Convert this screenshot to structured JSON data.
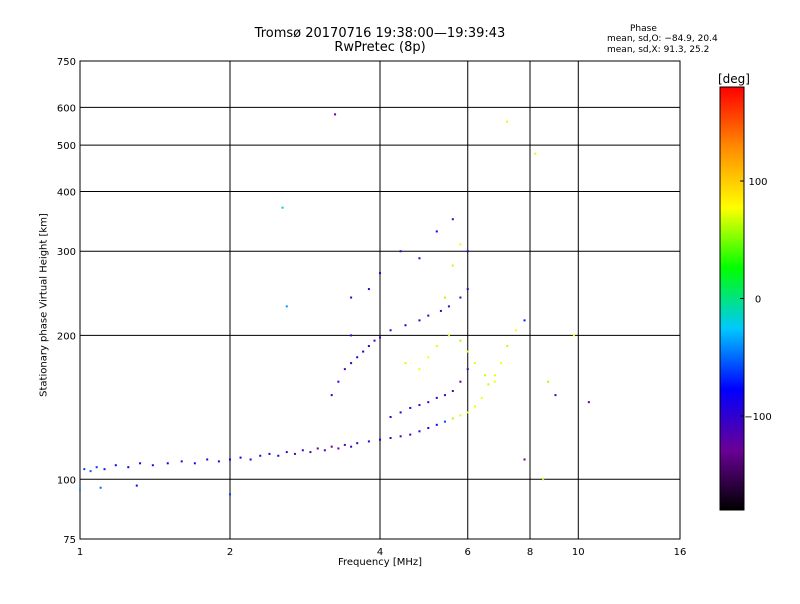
{
  "chart_data": {
    "type": "scatter",
    "title_line1": "Tromsø 20170716 19:38:00—19:39:43",
    "title_line2": "RwPretec (8p)",
    "xlabel": "Frequency [MHz]",
    "ylabel": "Stationary phase Virtual Height [km]",
    "x_scale": "log",
    "y_scale": "log",
    "xlim": [
      1,
      16
    ],
    "ylim": [
      75,
      750
    ],
    "x_ticks": [
      1,
      2,
      4,
      6,
      8,
      10,
      16
    ],
    "x_tick_labels": [
      "1",
      "2",
      "4",
      "6",
      "8",
      "10",
      "16"
    ],
    "x_grid": [
      1,
      2,
      4,
      6,
      8,
      10,
      16
    ],
    "y_ticks": [
      75,
      100,
      200,
      300,
      400,
      500,
      600,
      750
    ],
    "y_tick_labels": [
      "75",
      "100",
      "200",
      "300",
      "400",
      "500",
      "600",
      "750"
    ],
    "y_grid": [
      100,
      200,
      300,
      400,
      500,
      600
    ],
    "grid": true,
    "phase_stats": {
      "header": "Phase",
      "o_mode": "mean, sd,O: −84.9, 20.4",
      "x_mode": "mean, sd,X:  91.3, 25.2"
    },
    "colorbar": {
      "unit": "[deg]",
      "ticks": [
        100,
        0,
        -100
      ],
      "tick_labels": [
        "100",
        "0",
        "−100"
      ],
      "range": [
        -180,
        180
      ],
      "colors": [
        "#000000",
        "#6a0096",
        "#0000ff",
        "#00c8ff",
        "#00ff00",
        "#ffff00",
        "#ff8c00",
        "#ff0000"
      ]
    },
    "series": [
      {
        "points": [
          [
            1.02,
            105,
            -60
          ],
          [
            1.05,
            104,
            -55
          ],
          [
            1.08,
            106,
            -65
          ],
          [
            1.12,
            105,
            -70
          ],
          [
            1.18,
            107,
            -75
          ],
          [
            1.25,
            106,
            -80
          ],
          [
            1.32,
            108,
            -85
          ],
          [
            1.4,
            107,
            -90
          ],
          [
            1.5,
            108,
            -85
          ],
          [
            1.6,
            109,
            -95
          ],
          [
            1.7,
            108,
            -90
          ],
          [
            1.8,
            110,
            -100
          ],
          [
            1.9,
            109,
            -95
          ],
          [
            2.0,
            110,
            -90
          ],
          [
            2.1,
            111,
            -85
          ],
          [
            2.2,
            110,
            -100
          ],
          [
            2.3,
            112,
            -105
          ],
          [
            2.4,
            113,
            -95
          ],
          [
            2.5,
            112,
            -90
          ],
          [
            2.6,
            114,
            -110
          ],
          [
            2.7,
            113,
            -115
          ],
          [
            2.8,
            115,
            -105
          ],
          [
            2.9,
            114,
            -120
          ],
          [
            3.0,
            116,
            -125
          ],
          [
            3.1,
            115,
            -115
          ],
          [
            3.2,
            117,
            -130
          ],
          [
            3.3,
            116,
            -125
          ],
          [
            3.4,
            118,
            -120
          ],
          [
            3.5,
            117,
            -110
          ],
          [
            3.6,
            119,
            -105
          ],
          [
            3.8,
            120,
            -100
          ],
          [
            4.0,
            121,
            -95
          ],
          [
            4.2,
            122,
            -100
          ],
          [
            4.4,
            123,
            -110
          ],
          [
            4.6,
            124,
            -105
          ],
          [
            4.8,
            126,
            -100
          ],
          [
            5.0,
            128,
            -95
          ],
          [
            5.2,
            130,
            -85
          ],
          [
            5.4,
            132,
            -60
          ],
          [
            5.6,
            134,
            60
          ],
          [
            5.8,
            136,
            70
          ],
          [
            6.0,
            138,
            75
          ],
          [
            6.2,
            142,
            70
          ],
          [
            6.4,
            148,
            75
          ],
          [
            6.6,
            158,
            65
          ],
          [
            6.8,
            165,
            70
          ],
          [
            7.0,
            175,
            75
          ],
          [
            7.2,
            190,
            65
          ],
          [
            7.5,
            205,
            80
          ],
          [
            7.8,
            215,
            -70
          ],
          [
            4.2,
            135,
            -90
          ],
          [
            4.4,
            138,
            -95
          ],
          [
            4.6,
            141,
            -100
          ],
          [
            4.8,
            143,
            -110
          ],
          [
            5.0,
            145,
            -105
          ],
          [
            5.2,
            148,
            -100
          ],
          [
            5.4,
            150,
            -110
          ],
          [
            5.6,
            153,
            -115
          ],
          [
            5.8,
            160,
            -120
          ],
          [
            6.0,
            170,
            -110
          ],
          [
            3.2,
            150,
            -100
          ],
          [
            3.3,
            160,
            -105
          ],
          [
            3.4,
            170,
            -110
          ],
          [
            3.5,
            175,
            -100
          ],
          [
            3.6,
            180,
            -95
          ],
          [
            3.7,
            185,
            -90
          ],
          [
            3.8,
            190,
            -100
          ],
          [
            3.9,
            195,
            -105
          ],
          [
            4.0,
            198,
            -110
          ],
          [
            3.5,
            200,
            -100
          ],
          [
            4.2,
            205,
            -95
          ],
          [
            4.5,
            210,
            -90
          ],
          [
            4.8,
            215,
            -95
          ],
          [
            5.0,
            220,
            -100
          ],
          [
            5.3,
            225,
            -105
          ],
          [
            5.5,
            230,
            -110
          ],
          [
            5.8,
            240,
            -100
          ],
          [
            6.0,
            250,
            -95
          ],
          [
            4.5,
            175,
            70
          ],
          [
            4.8,
            170,
            75
          ],
          [
            5.0,
            180,
            80
          ],
          [
            5.2,
            190,
            70
          ],
          [
            5.5,
            200,
            65
          ],
          [
            5.8,
            195,
            60
          ],
          [
            6.0,
            185,
            75
          ],
          [
            6.2,
            175,
            70
          ],
          [
            6.5,
            165,
            65
          ],
          [
            6.8,
            160,
            75
          ],
          [
            5.4,
            240,
            60
          ],
          [
            5.6,
            280,
            65
          ],
          [
            5.8,
            310,
            80
          ],
          [
            6.0,
            300,
            -100
          ],
          [
            5.6,
            350,
            -110
          ],
          [
            5.2,
            330,
            -80
          ],
          [
            4.8,
            290,
            -90
          ],
          [
            4.4,
            300,
            -95
          ],
          [
            4.0,
            270,
            -100
          ],
          [
            3.8,
            250,
            -105
          ],
          [
            3.5,
            240,
            -110
          ],
          [
            8.2,
            480,
            70
          ],
          [
            7.2,
            560,
            85
          ],
          [
            3.25,
            580,
            -120
          ],
          [
            2.55,
            370,
            -20
          ],
          [
            7.8,
            110,
            -130
          ],
          [
            8.5,
            100,
            60
          ],
          [
            10.5,
            145,
            -120
          ],
          [
            9.8,
            200,
            75
          ],
          [
            2.6,
            230,
            -40
          ],
          [
            1.0,
            95,
            -40
          ],
          [
            1.1,
            96,
            -50
          ],
          [
            1.3,
            97,
            -75
          ],
          [
            2.0,
            93,
            -60
          ],
          [
            9.0,
            150,
            -110
          ],
          [
            8.7,
            160,
            60
          ]
        ]
      }
    ]
  }
}
